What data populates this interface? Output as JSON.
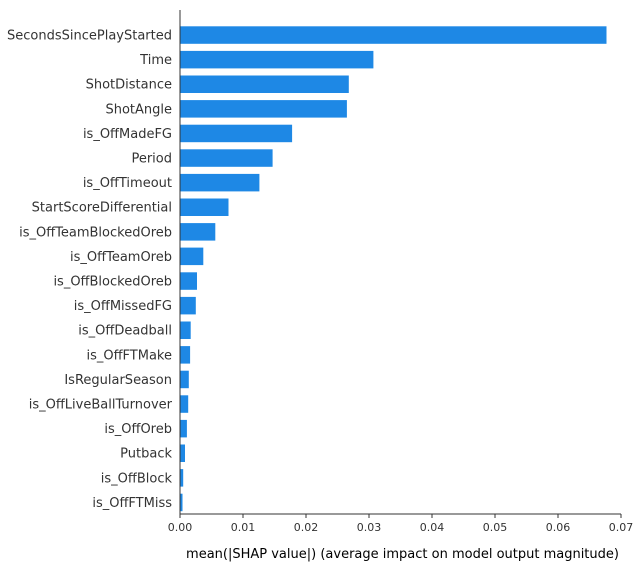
{
  "chart_data": {
    "type": "bar",
    "orientation": "horizontal",
    "bar_color": "#1E88E5",
    "categories": [
      "SecondsSincePlayStarted",
      "Time",
      "ShotDistance",
      "ShotAngle",
      "is_OffMadeFG",
      "Period",
      "is_OffTimeout",
      "StartScoreDifferential",
      "is_OffTeamBlockedOreb",
      "is_OffTeamOreb",
      "is_OffBlockedOreb",
      "is_OffMissedFG",
      "is_OffDeadball",
      "is_OffFTMake",
      "IsRegularSeason",
      "is_OffLiveBallTurnover",
      "is_OffOreb",
      "Putback",
      "is_OffBlock",
      "is_OffFTMiss"
    ],
    "values": [
      0.0677,
      0.0307,
      0.0268,
      0.0265,
      0.0178,
      0.0147,
      0.0126,
      0.0077,
      0.0056,
      0.0037,
      0.0027,
      0.0025,
      0.0017,
      0.0016,
      0.0014,
      0.0013,
      0.0011,
      0.0008,
      0.0005,
      0.0004
    ],
    "xlabel": "mean(|SHAP value|) (average impact on model output magnitude)",
    "xlim": [
      0,
      0.07
    ],
    "xticks": [
      0.0,
      0.01,
      0.02,
      0.03,
      0.04,
      0.05,
      0.06,
      0.07
    ],
    "xtick_labels": [
      "0.00",
      "0.01",
      "0.02",
      "0.03",
      "0.04",
      "0.05",
      "0.06",
      "0.07"
    ],
    "grid": false
  }
}
